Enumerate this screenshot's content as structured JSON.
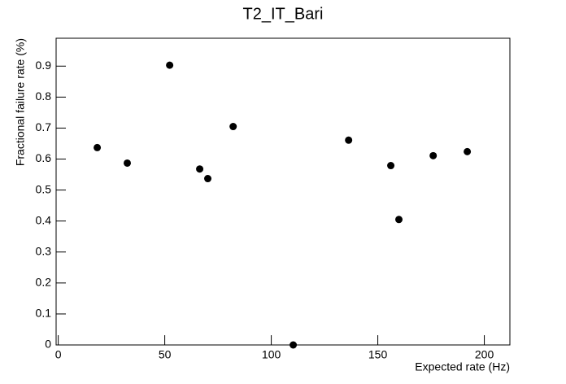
{
  "chart_data": {
    "type": "scatter",
    "title": "T2_IT_Bari",
    "x_label": "Expected rate (Hz)",
    "y_label": "Fractional failure rate (%)",
    "color": "#000000",
    "x": [
      18.3,
      32.4,
      52.3,
      66.4,
      70.2,
      82.1,
      110.3,
      136.3,
      156.1,
      159.9,
      176,
      192
    ],
    "values": [
      0.637,
      0.587,
      0.903,
      0.568,
      0.537,
      0.705,
      0,
      0.661,
      0.579,
      0.405,
      0.611,
      0.624
    ],
    "xlim": [
      -1,
      212
    ],
    "ylim": [
      0,
      0.99
    ],
    "xticks": [
      0,
      50,
      100,
      150,
      200
    ],
    "yticks": [
      0,
      0.1,
      0.2,
      0.3,
      0.4,
      0.5,
      0.6,
      0.7,
      0.8,
      0.9
    ],
    "grid": false
  }
}
